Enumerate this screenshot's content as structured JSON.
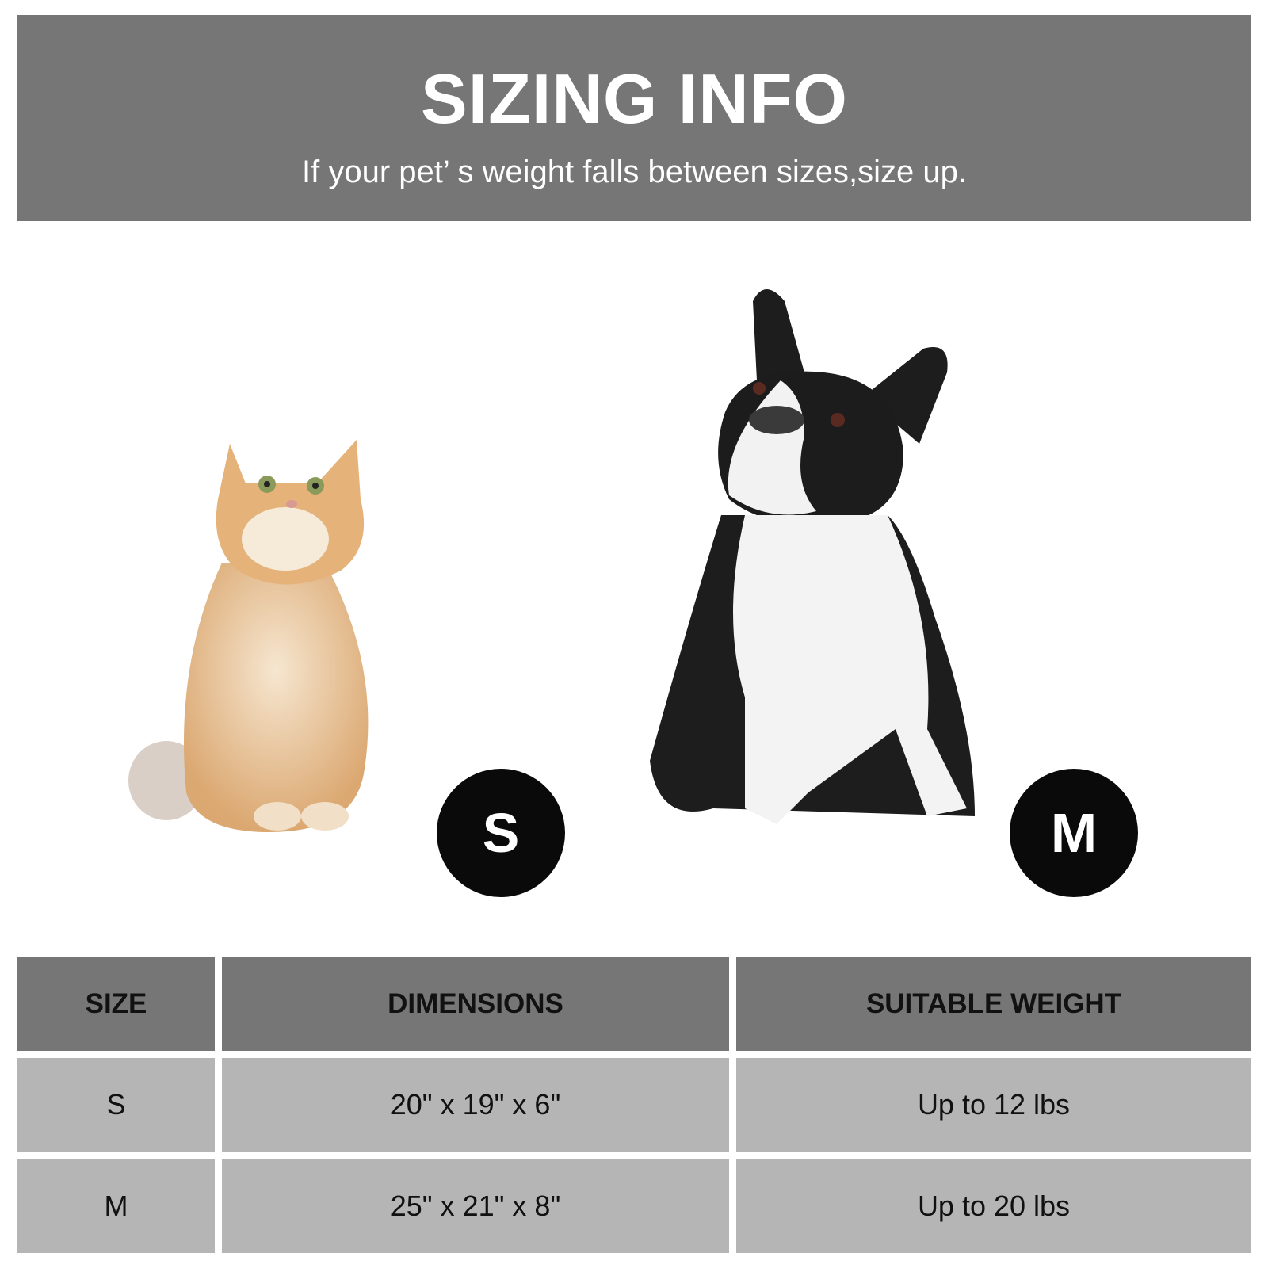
{
  "header": {
    "title": "SIZING INFO",
    "subtitle": "If your pet’ s weight falls between sizes,size up."
  },
  "pets": [
    {
      "animal": "cat",
      "size_badge": "S"
    },
    {
      "animal": "dog",
      "size_badge": "M"
    }
  ],
  "table": {
    "columns": [
      "SIZE",
      "DIMENSIONS",
      "SUITABLE WEIGHT"
    ],
    "rows": [
      [
        "S",
        "20\" x 19\" x 6\"",
        "Up to 12 lbs"
      ],
      [
        "M",
        "25\" x 21\" x 8\"",
        "Up to 20 lbs"
      ]
    ]
  },
  "colors": {
    "banner": "#767676",
    "header_cell": "#767676",
    "row_cell": "#b5b5b5",
    "badge": "#0a0a0a"
  }
}
